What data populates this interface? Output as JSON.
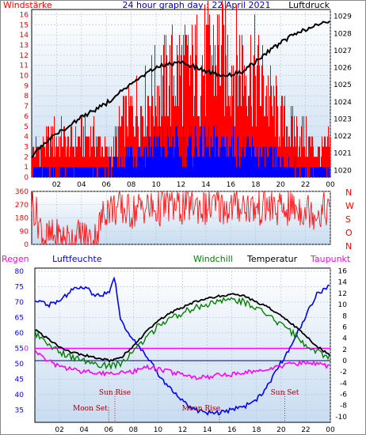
{
  "header": {
    "left_label": "Windstärke",
    "title": "24 hour graph day : 22 April 2021",
    "right_label": "Luftdruck"
  },
  "colors": {
    "wind": "#ff0000",
    "gust_blue": "#0000ff",
    "pressure": "#000000",
    "humidity": "#0000ff",
    "windchill": "#008000",
    "temperature": "#000000",
    "dewpoint": "#ff00ff",
    "rain": "#ff00ff"
  },
  "chart_data": [
    {
      "type": "bar",
      "name": "wind",
      "left_axis": {
        "label": "Windstärke",
        "ticks": [
          "0",
          "1",
          "2",
          "3",
          "4",
          "5",
          "6",
          "7",
          "8",
          "9",
          "10",
          "11",
          "12",
          "13",
          "14",
          "15",
          "16"
        ],
        "range": [
          0,
          16.5
        ]
      },
      "right_axis": {
        "label": "Luftdruck",
        "ticks": [
          "1020",
          "1021",
          "1022",
          "1023",
          "1024",
          "1025",
          "1026",
          "1027",
          "1028",
          "1029"
        ],
        "range": [
          1019.6,
          1029.4
        ]
      },
      "x_ticks": [
        "02",
        "04",
        "06",
        "08",
        "10",
        "12",
        "14",
        "16",
        "18",
        "20",
        "22",
        "00"
      ],
      "series": [
        {
          "name": "Windstärke",
          "x": [
            0,
            1,
            2,
            3,
            4,
            5,
            6,
            6.5,
            7,
            8,
            9,
            10,
            11,
            12,
            13,
            14,
            15,
            16,
            17,
            18,
            19,
            20,
            21,
            22,
            23,
            24
          ],
          "values": [
            3,
            4,
            5,
            4,
            5,
            5,
            3,
            3,
            6,
            8,
            9,
            11,
            12,
            13,
            13,
            14,
            15,
            14,
            14,
            13,
            10,
            7,
            6,
            5,
            3,
            4
          ]
        },
        {
          "name": "gust",
          "x": [
            0,
            2,
            4,
            6,
            7,
            8,
            10,
            12,
            14,
            16,
            18,
            20,
            22,
            24
          ],
          "values": [
            1,
            1,
            1,
            1,
            2,
            3,
            4,
            4,
            4,
            4,
            3,
            2,
            1,
            1
          ]
        },
        {
          "name": "Luftdruck",
          "x": [
            0,
            1,
            2,
            3,
            4,
            5,
            6,
            7,
            8,
            9,
            10,
            11,
            12,
            13,
            14,
            15,
            16,
            17,
            18,
            19,
            20,
            21,
            22,
            23,
            24
          ],
          "values": [
            1020.8,
            1021.6,
            1022.1,
            1022.6,
            1023.1,
            1023.5,
            1023.9,
            1024.5,
            1025.0,
            1025.5,
            1026.0,
            1026.2,
            1026.3,
            1026.1,
            1025.8,
            1025.6,
            1025.6,
            1025.8,
            1026.3,
            1026.9,
            1027.4,
            1027.9,
            1028.2,
            1028.5,
            1028.7
          ]
        }
      ]
    },
    {
      "type": "line",
      "name": "wind_direction",
      "left_axis": {
        "ticks": [
          "0",
          "90",
          "180",
          "270",
          "360"
        ],
        "range": [
          0,
          360
        ]
      },
      "right_labels": [
        "N",
        "W",
        "S",
        "O",
        "N"
      ],
      "series": [
        {
          "name": "direction",
          "x": [
            0,
            1,
            2,
            3,
            4,
            5,
            6,
            7,
            8,
            9,
            10,
            11,
            12,
            13,
            14,
            15,
            16,
            17,
            18,
            19,
            20,
            21,
            22,
            23,
            24
          ],
          "values": [
            300,
            40,
            50,
            30,
            60,
            20,
            250,
            240,
            220,
            260,
            230,
            270,
            250,
            280,
            240,
            260,
            250,
            270,
            240,
            260,
            230,
            250,
            240,
            220,
            250
          ]
        }
      ]
    },
    {
      "type": "line",
      "name": "temperature",
      "legend": [
        "Regen",
        "Luftfeuchte",
        "Windchill",
        "Temperatur",
        "Taupunkt"
      ],
      "left_axis": {
        "ticks": [
          "35",
          "40",
          "45",
          "50",
          "55",
          "60",
          "65",
          "70",
          "75",
          "80"
        ],
        "range": [
          31,
          81
        ]
      },
      "right_axis": {
        "ticks": [
          "-10",
          "-8",
          "-6",
          "-4",
          "-2",
          "0",
          "2",
          "4",
          "6",
          "8",
          "10",
          "12",
          "14",
          "16"
        ],
        "range": [
          -11,
          16.5
        ]
      },
      "rain_axis_label": "0",
      "x_ticks": [
        "02",
        "04",
        "06",
        "08",
        "10",
        "12",
        "14",
        "16",
        "18",
        "20",
        "22",
        "00"
      ],
      "annotations": [
        "Sun Rise",
        "Moon Set",
        "Moon Rise",
        "Sun Set"
      ],
      "series": [
        {
          "name": "Luftfeuchte",
          "x": [
            0,
            1,
            2,
            3,
            4,
            5,
            6,
            6.5,
            7,
            8,
            9,
            10,
            11,
            12,
            13,
            14,
            15,
            16,
            17,
            18,
            19,
            20,
            21,
            22,
            23,
            24
          ],
          "values": [
            71,
            69,
            70,
            74,
            75,
            72,
            73,
            78,
            64,
            58,
            53,
            47,
            42,
            38,
            35,
            34,
            34,
            35,
            36,
            38,
            43,
            50,
            57,
            65,
            73,
            75
          ]
        },
        {
          "name": "Windchill",
          "x": [
            0,
            1,
            2,
            3,
            4,
            5,
            6,
            7,
            8,
            9,
            10,
            11,
            12,
            13,
            14,
            15,
            16,
            17,
            18,
            19,
            20,
            21,
            22,
            23,
            24
          ],
          "values": [
            5,
            3,
            1.5,
            0.5,
            0,
            -0.5,
            -1,
            -0.5,
            1.5,
            4,
            6,
            7.5,
            8.5,
            9.5,
            10,
            10.5,
            10.8,
            10.5,
            9.5,
            8,
            6.5,
            5,
            3,
            1.5,
            0.5
          ]
        },
        {
          "name": "Temperatur",
          "x": [
            0,
            1,
            2,
            3,
            4,
            5,
            6,
            7,
            8,
            9,
            10,
            11,
            12,
            13,
            14,
            15,
            16,
            17,
            18,
            19,
            20,
            21,
            22,
            23,
            24
          ],
          "values": [
            5.5,
            4,
            2.5,
            1.5,
            1,
            0.5,
            0,
            0.5,
            2.5,
            5,
            7,
            8.5,
            9.5,
            10.5,
            11,
            11.5,
            11.8,
            11.5,
            10.5,
            9.5,
            8,
            6.5,
            4.5,
            2.5,
            1
          ]
        },
        {
          "name": "Taupunkt",
          "x": [
            0,
            1,
            2,
            3,
            4,
            5,
            6,
            7,
            8,
            9,
            10,
            11,
            12,
            13,
            14,
            15,
            16,
            17,
            18,
            19,
            20,
            21,
            22,
            23,
            24
          ],
          "values": [
            2,
            0,
            -1,
            -1.5,
            -2,
            -2,
            -2.5,
            -2,
            -2,
            -1,
            -1.5,
            -2,
            -2.5,
            -3,
            -3,
            -2.5,
            -2.5,
            -2,
            -2,
            -1.5,
            -1,
            -0.5,
            -0.5,
            -0.5,
            -1
          ]
        },
        {
          "name": "Regen",
          "x": [
            0,
            24
          ],
          "values": [
            0,
            0
          ]
        }
      ]
    }
  ]
}
